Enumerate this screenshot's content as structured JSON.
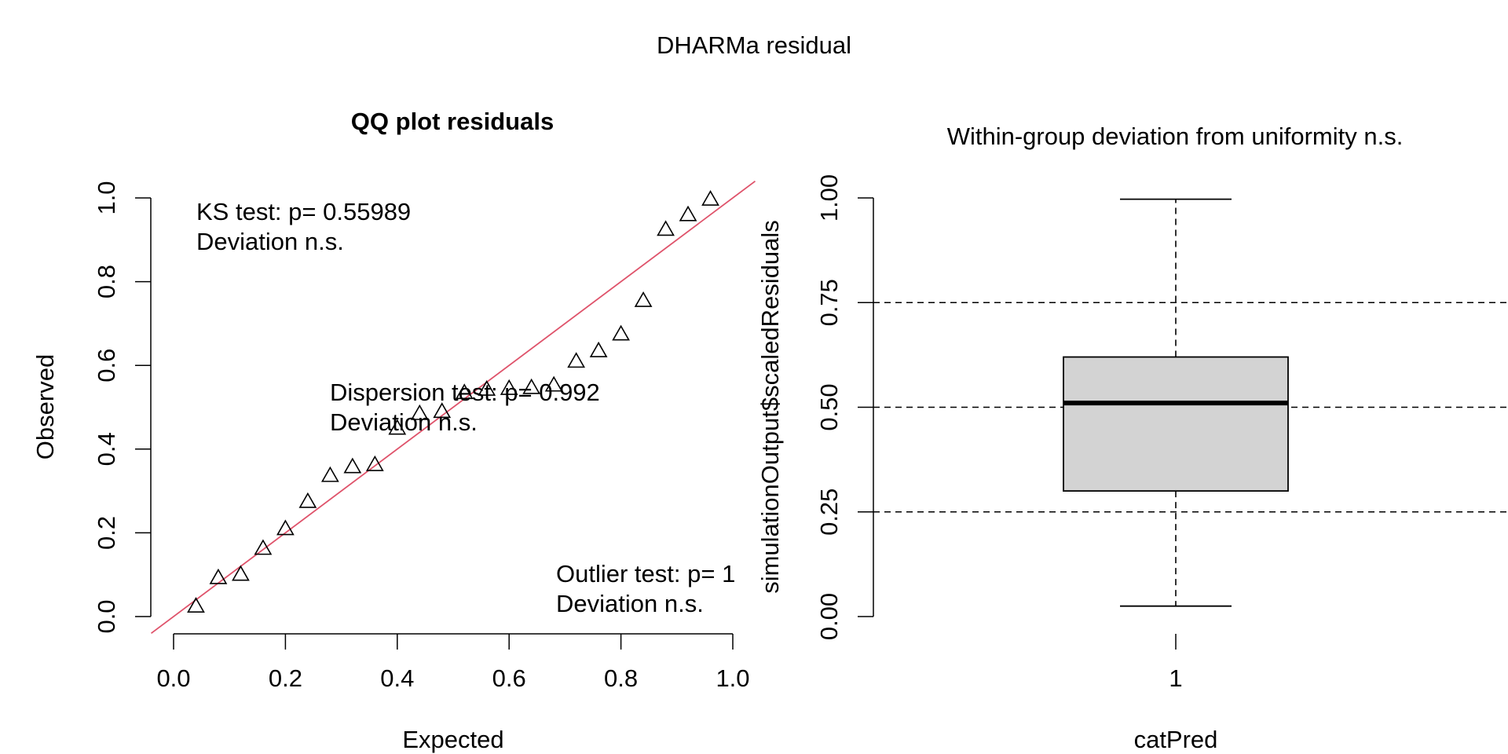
{
  "figure_title": "DHARMa residual",
  "chart_data": [
    {
      "type": "scatter",
      "title": "QQ plot residuals",
      "xlabel": "Expected",
      "ylabel": "Observed",
      "xlim": [
        0,
        1
      ],
      "ylim": [
        0,
        1
      ],
      "x_ticks": [
        "0.0",
        "0.2",
        "0.4",
        "0.6",
        "0.8",
        "1.0"
      ],
      "y_ticks": [
        "0.0",
        "0.2",
        "0.4",
        "0.6",
        "0.8",
        "1.0"
      ],
      "marker": "open-triangle",
      "reference_line": {
        "slope": 1,
        "intercept": 0,
        "color": "#DF536B"
      },
      "points": [
        {
          "x": 0.04,
          "y": 0.025
        },
        {
          "x": 0.08,
          "y": 0.093
        },
        {
          "x": 0.12,
          "y": 0.101
        },
        {
          "x": 0.16,
          "y": 0.163
        },
        {
          "x": 0.2,
          "y": 0.21
        },
        {
          "x": 0.24,
          "y": 0.275
        },
        {
          "x": 0.28,
          "y": 0.337
        },
        {
          "x": 0.32,
          "y": 0.358
        },
        {
          "x": 0.36,
          "y": 0.363
        },
        {
          "x": 0.4,
          "y": 0.45
        },
        {
          "x": 0.44,
          "y": 0.485
        },
        {
          "x": 0.48,
          "y": 0.49
        },
        {
          "x": 0.52,
          "y": 0.535
        },
        {
          "x": 0.56,
          "y": 0.543
        },
        {
          "x": 0.6,
          "y": 0.545
        },
        {
          "x": 0.64,
          "y": 0.547
        },
        {
          "x": 0.68,
          "y": 0.553
        },
        {
          "x": 0.72,
          "y": 0.61
        },
        {
          "x": 0.76,
          "y": 0.635
        },
        {
          "x": 0.8,
          "y": 0.675
        },
        {
          "x": 0.84,
          "y": 0.755
        },
        {
          "x": 0.88,
          "y": 0.925
        },
        {
          "x": 0.92,
          "y": 0.96
        },
        {
          "x": 0.96,
          "y": 0.997
        }
      ],
      "annotations": {
        "ks_line1": "KS test: p= 0.55989",
        "ks_line2": "Deviation  n.s.",
        "dispersion_line1": "Dispersion test: p= 0.992",
        "dispersion_line2": "Deviation  n.s.",
        "outlier_line1": "Outlier test: p= 1",
        "outlier_line2": "Deviation  n.s."
      }
    },
    {
      "type": "boxplot",
      "title": "Within-group deviation from uniformity n.s.",
      "xlabel": "catPred",
      "ylabel": "simulationOutput$scaledResiduals",
      "ylim": [
        0,
        1
      ],
      "y_ticks": [
        "0.00",
        "0.25",
        "0.50",
        "0.75",
        "1.00"
      ],
      "categories": [
        "1"
      ],
      "reference_lines": [
        0.25,
        0.5,
        0.75
      ],
      "box": {
        "min": 0.025,
        "q1": 0.3,
        "median": 0.51,
        "q3": 0.62,
        "max": 0.997,
        "fill": "#D3D3D3"
      }
    }
  ]
}
